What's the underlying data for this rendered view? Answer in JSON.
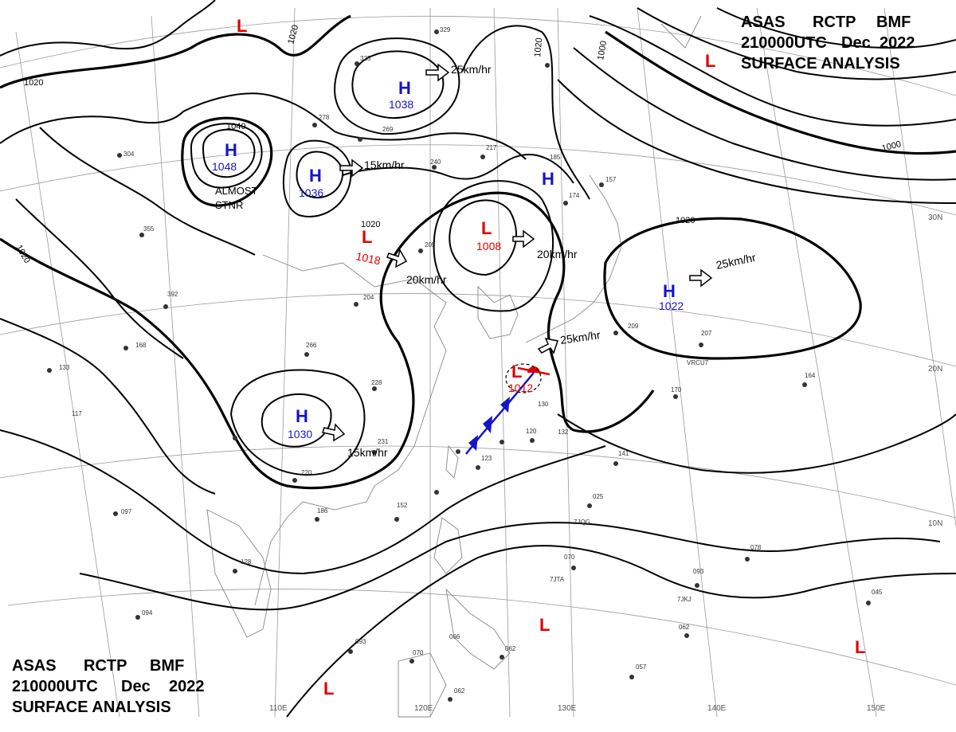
{
  "header": {
    "line1": [
      "ASAS",
      "RCTP",
      "BMF"
    ],
    "line2": [
      "210000UTC",
      "Dec",
      "2022"
    ],
    "line3": "SURFACE ANALYSIS"
  },
  "colors": {
    "high": "#1515c8",
    "low": "#e00000",
    "cold_front": "#1515c8",
    "warm_front": "#e00000",
    "isobar": "#000000",
    "coast": "#888888",
    "grid": "#9a9a9a"
  },
  "pressure_centers": [
    {
      "type": "H",
      "value": "1048"
    },
    {
      "type": "H",
      "value": "1038"
    },
    {
      "type": "H",
      "value": "1036"
    },
    {
      "type": "H",
      "value": ""
    },
    {
      "type": "H",
      "value": "1030"
    },
    {
      "type": "H",
      "value": "1022"
    },
    {
      "type": "L",
      "value": "1018"
    },
    {
      "type": "L",
      "value": "1008"
    },
    {
      "type": "L",
      "value": "1012"
    },
    {
      "type": "L",
      "value": ""
    },
    {
      "type": "L",
      "value": ""
    },
    {
      "type": "L",
      "value": ""
    },
    {
      "type": "L",
      "value": ""
    },
    {
      "type": "L",
      "value": ""
    }
  ],
  "motion_labels": [
    "25km/hr",
    "15km/hr",
    "20km/hr",
    "20km/hr",
    "25km/hr",
    "25km/hr",
    "15km/hr"
  ],
  "isobar_labels": [
    "1020",
    "1020",
    "1020",
    "1000",
    "1000",
    "1020",
    "1040",
    "1020",
    "1020"
  ],
  "note": [
    "ALMOST",
    "STNR"
  ],
  "lat_labels": [
    "30N",
    "20N",
    "10N"
  ],
  "lon_labels": [
    "110E",
    "120E",
    "130E",
    "140E",
    "150E"
  ],
  "station_values": [
    "329",
    "325",
    "278",
    "269",
    "217",
    "185",
    "174",
    "157",
    "304",
    "355",
    "392",
    "168",
    "133",
    "117",
    "097",
    "128",
    "094",
    "093",
    "070",
    "062",
    "062",
    "057",
    "066",
    "152",
    "186",
    "220",
    "231",
    "228",
    "204",
    "205",
    "240",
    "266",
    "209",
    "207",
    "170",
    "164",
    "141",
    "123",
    "120",
    "132",
    "130",
    "025",
    "070",
    "078",
    "093",
    "045",
    "062"
  ],
  "ship_ids": [
    "VRCU7",
    "7JQG",
    "7JTA",
    "7JKJ"
  ]
}
